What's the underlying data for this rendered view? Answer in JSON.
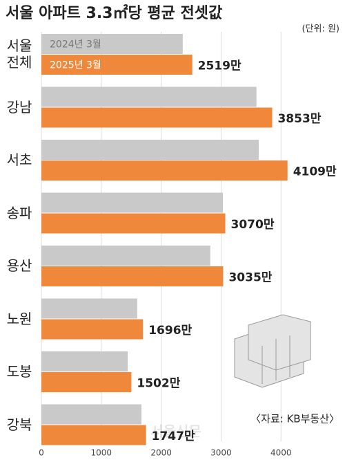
{
  "chart_data": {
    "type": "hbar",
    "title": "서울 아파트 3.3㎡당 평균 전셋값",
    "unit": "(단위: 원)",
    "source": "〈자료: KB부동산〉",
    "watermark": "서울신문",
    "categories": [
      "서울\n전체",
      "강남",
      "서초",
      "송파",
      "용산",
      "노원",
      "도봉",
      "강북"
    ],
    "series": [
      {
        "name": "2024년 3월",
        "color": "#c9c9c9",
        "values": [
          2360,
          3590,
          3630,
          3030,
          2820,
          1600,
          1440,
          1670
        ]
      },
      {
        "name": "2025년 3월",
        "color": "#f0883c",
        "values": [
          2519,
          3853,
          4109,
          3070,
          3035,
          1696,
          1502,
          1747
        ],
        "value_labels": [
          "2519만",
          "3853만",
          "4109만",
          "3070만",
          "3035만",
          "1696만",
          "1502만",
          "1747만"
        ]
      }
    ],
    "xlim": [
      0,
      4700
    ],
    "xticks": [
      0,
      1000,
      2000,
      3000,
      4000
    ],
    "grid": true
  }
}
